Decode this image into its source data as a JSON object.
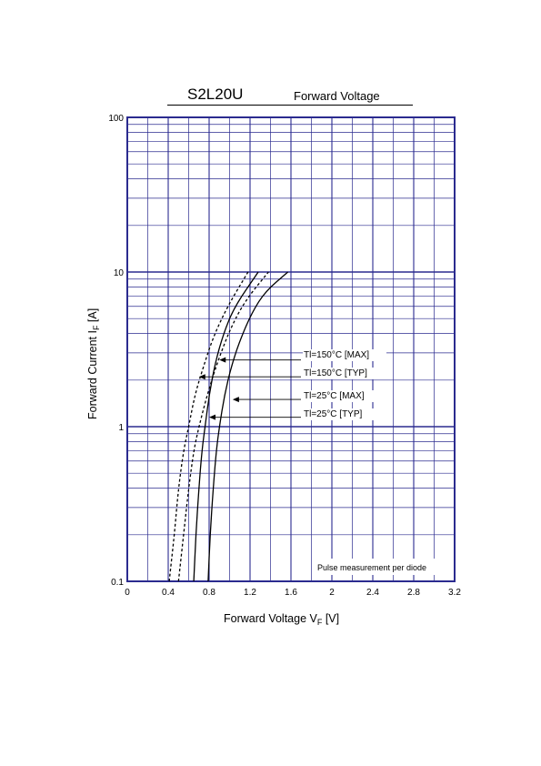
{
  "chart_data": {
    "type": "line",
    "title": "S2L20U",
    "subtitle": "Forward Voltage",
    "xlabel": {
      "main": "Forward Voltage  V",
      "sub": "F",
      "unit": "  [V]"
    },
    "ylabel": {
      "main": "Forward Current  I",
      "sub": "F",
      "unit": "  [A]"
    },
    "xlim": [
      0,
      3.2
    ],
    "ylim": [
      0.1,
      100
    ],
    "y_scale": "log",
    "grid": true,
    "x_ticks": [
      "0",
      "0.4",
      "0.8",
      "1.2",
      "1.6",
      "2",
      "2.4",
      "2.8",
      "3.2"
    ],
    "y_ticks": [
      "0.1",
      "1",
      "10",
      "100"
    ],
    "note": "Pulse measurement per diode",
    "grid_color": "#2b2b8f",
    "series": [
      {
        "name": "Tl=150°C [MAX]",
        "style": "dashed",
        "points": [
          [
            0.5,
            0.1
          ],
          [
            0.55,
            0.2
          ],
          [
            0.6,
            0.4
          ],
          [
            0.65,
            0.7
          ],
          [
            0.7,
            1.0
          ],
          [
            0.78,
            1.6
          ],
          [
            0.88,
            2.6
          ],
          [
            1.0,
            4.2
          ],
          [
            1.15,
            6.5
          ],
          [
            1.38,
            10
          ]
        ]
      },
      {
        "name": "Tl=150°C [TYP]",
        "style": "dashed",
        "points": [
          [
            0.41,
            0.1
          ],
          [
            0.46,
            0.2
          ],
          [
            0.5,
            0.4
          ],
          [
            0.55,
            0.7
          ],
          [
            0.6,
            1.0
          ],
          [
            0.66,
            1.6
          ],
          [
            0.74,
            2.4
          ],
          [
            0.84,
            3.8
          ],
          [
            0.98,
            6.0
          ],
          [
            1.18,
            10
          ]
        ]
      },
      {
        "name": "Tl=25°C [MAX]",
        "style": "solid",
        "points": [
          [
            0.79,
            0.1
          ],
          [
            0.81,
            0.2
          ],
          [
            0.84,
            0.4
          ],
          [
            0.87,
            0.7
          ],
          [
            0.9,
            1.0
          ],
          [
            0.95,
            1.6
          ],
          [
            1.02,
            2.5
          ],
          [
            1.1,
            3.6
          ],
          [
            1.22,
            5.5
          ],
          [
            1.35,
            7.5
          ],
          [
            1.57,
            10
          ]
        ]
      },
      {
        "name": "Tl=25°C [TYP]",
        "style": "solid",
        "points": [
          [
            0.65,
            0.1
          ],
          [
            0.67,
            0.2
          ],
          [
            0.7,
            0.4
          ],
          [
            0.73,
            0.7
          ],
          [
            0.76,
            1.0
          ],
          [
            0.8,
            1.6
          ],
          [
            0.86,
            2.6
          ],
          [
            0.94,
            4.0
          ],
          [
            1.05,
            6.0
          ],
          [
            1.28,
            10
          ]
        ]
      }
    ],
    "annotations": [
      {
        "label": "Tl=150°C [MAX]",
        "x": 0.9,
        "y": 2.7
      },
      {
        "label": "Tl=150°C [TYP]",
        "x": 0.7,
        "y": 2.1
      },
      {
        "label": "Tl=25°C [MAX]",
        "x": 1.03,
        "y": 1.5
      },
      {
        "label": "Tl=25°C [TYP]",
        "x": 0.8,
        "y": 1.15
      }
    ]
  }
}
